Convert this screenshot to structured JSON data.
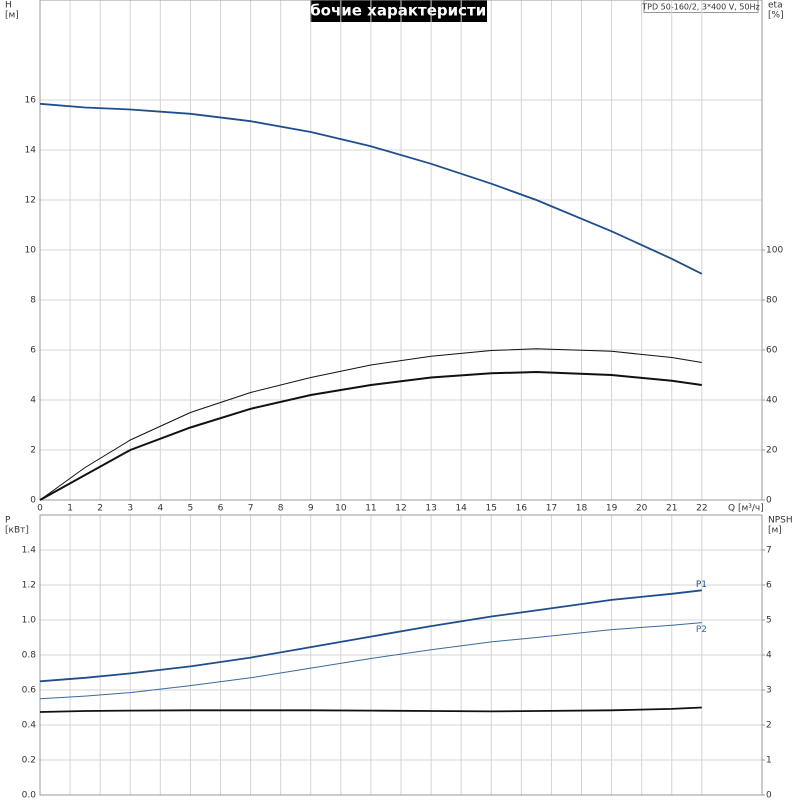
{
  "chart_data": [
    {
      "type": "line",
      "title": "Рабочие характеристики",
      "subtitle": "TPD 50-160/2, 3*400 V, 50Hz",
      "xlabel": "Q [м³/ч]",
      "ylabel": [
        "H",
        "[м]"
      ],
      "y2label": [
        "eta",
        "[%]"
      ],
      "x": [
        0,
        1.5,
        3,
        5,
        7,
        9,
        11,
        13,
        15,
        16.5,
        19,
        21,
        22
      ],
      "xlim": [
        0,
        24
      ],
      "xticks": [
        0,
        1,
        2,
        3,
        4,
        5,
        6,
        7,
        8,
        9,
        10,
        11,
        12,
        13,
        14,
        15,
        16,
        17,
        18,
        19,
        20,
        21,
        22
      ],
      "ylim": [
        0,
        20
      ],
      "yticks": [
        0,
        2,
        4,
        6,
        8,
        10,
        12,
        14,
        16
      ],
      "y2lim": [
        0,
        200
      ],
      "y2ticks": [
        0,
        20,
        40,
        60,
        80,
        100
      ],
      "grid": true,
      "series": [
        {
          "color": "#1f4e8c",
          "linewidth": 1.8,
          "values": [
            15.85,
            15.7,
            15.62,
            15.45,
            15.15,
            14.72,
            14.15,
            13.45,
            12.65,
            12.0,
            10.75,
            9.65,
            9.05
          ]
        },
        {
          "color": "#111111",
          "linewidth": 1,
          "axis": "y2",
          "values": [
            0,
            13,
            24,
            35,
            43,
            49,
            54,
            57.5,
            59.8,
            60.5,
            59.5,
            57,
            55
          ]
        },
        {
          "color": "#111111",
          "linewidth": 2,
          "axis": "y2",
          "values": [
            0,
            10,
            20,
            29,
            36.5,
            42,
            46,
            49,
            50.7,
            51.2,
            50,
            47.7,
            46
          ]
        }
      ]
    },
    {
      "type": "line",
      "ylabel": [
        "P",
        "[кВт]"
      ],
      "y2label": [
        "NPSH",
        "[м]"
      ],
      "x": [
        0,
        1.5,
        3,
        5,
        7,
        9,
        11,
        13,
        15,
        16.5,
        19,
        21,
        22
      ],
      "xlim": [
        0,
        24
      ],
      "xticks": [
        0,
        1,
        2,
        3,
        4,
        5,
        6,
        7,
        8,
        9,
        10,
        11,
        12,
        13,
        14,
        15,
        16,
        17,
        18,
        19,
        20,
        21,
        22
      ],
      "ylim": [
        0,
        1.6
      ],
      "yticks": [
        {
          "value": 0,
          "label": "0.0"
        },
        {
          "value": 0.2,
          "label": "0.2"
        },
        {
          "value": 0.4,
          "label": "0.4"
        },
        {
          "value": 0.6,
          "label": "0.6"
        },
        {
          "value": 0.8,
          "label": "0.8"
        },
        {
          "value": 1,
          "label": "1.0"
        },
        {
          "value": 1.2,
          "label": "1.2"
        },
        {
          "value": 1.4,
          "label": "1.4"
        }
      ],
      "y2lim": [
        0,
        8
      ],
      "y2ticks": [
        0,
        1,
        2,
        3,
        4,
        5,
        6,
        7
      ],
      "grid": true,
      "series": [
        {
          "name": "P1",
          "color": "#1f4e8c",
          "linewidth": 1.8,
          "values": [
            0.65,
            0.67,
            0.695,
            0.735,
            0.785,
            0.845,
            0.905,
            0.965,
            1.02,
            1.055,
            1.115,
            1.15,
            1.17
          ]
        },
        {
          "name": "P2",
          "color": "#3a6a9e",
          "linewidth": 1,
          "values": [
            0.55,
            0.565,
            0.585,
            0.625,
            0.67,
            0.725,
            0.78,
            0.83,
            0.875,
            0.9,
            0.945,
            0.97,
            0.985
          ]
        },
        {
          "color": "#111111",
          "linewidth": 1.8,
          "axis": "y2",
          "values": [
            2.37,
            2.4,
            2.41,
            2.42,
            2.42,
            2.42,
            2.41,
            2.4,
            2.39,
            2.4,
            2.42,
            2.46,
            2.5
          ]
        }
      ]
    }
  ]
}
